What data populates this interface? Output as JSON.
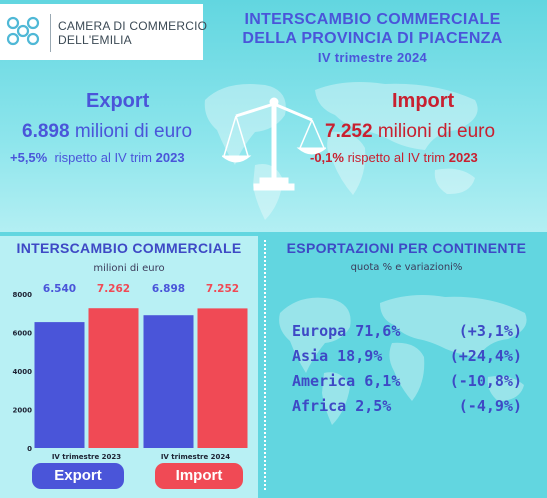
{
  "header": {
    "org_line1": "CAMERA DI COMMERCIO",
    "org_line2": "DELL'EMILIA",
    "title_line1": "INTERSCAMBIO COMMERCIALE",
    "title_line2": "DELLA PROVINCIA DI PIACENZA",
    "period": "IV trimestre 2024"
  },
  "export": {
    "label": "Export",
    "value": "6.898",
    "unit": "milioni di euro",
    "variation": "+5,5%",
    "variation_text": "rispetto al IV trim",
    "variation_year": "2023",
    "color": "#4a55d9"
  },
  "import": {
    "label": "Import",
    "value": "7.252",
    "unit": "milioni di euro",
    "variation": "-0,1%",
    "variation_text": "rispetto al IV trim",
    "variation_year": "2023",
    "color": "#c82030"
  },
  "icons": {
    "logo": "chamber-logo-icon",
    "balance": "balance-scale-icon",
    "map": "world-map-icon"
  },
  "chart_data": {
    "type": "bar",
    "title": "INTERSCAMBIO COMMERCIALE",
    "subtitle": "milioni di euro",
    "categories": [
      "IV trimestre 2023",
      "IV trimestre 2024"
    ],
    "series": [
      {
        "name": "Export",
        "values": [
          6540,
          6898
        ],
        "labels": [
          "6.540",
          "6.898"
        ],
        "color": "#4a55d9",
        "label_color": "#4a55d9"
      },
      {
        "name": "Import",
        "values": [
          7262,
          7252
        ],
        "labels": [
          "7.262",
          "7.252"
        ],
        "color": "#f04a55",
        "label_color": "#f04a55"
      }
    ],
    "ylim": [
      0,
      8000
    ],
    "yticks": [
      0,
      2000,
      4000,
      6000,
      8000
    ],
    "ytick_labels": [
      "0",
      "2000",
      "4000",
      "6000",
      "8000"
    ],
    "grid": false,
    "legend": "bottom"
  },
  "continents": {
    "title": "ESPORTAZIONI PER CONTINENTE",
    "subtitle": "quota % e variazioni%",
    "rows": [
      {
        "name": "Europa 71,6%",
        "variation": "(+3,1%)"
      },
      {
        "name": "Asia 18,9%",
        "variation": "(+24,4%)"
      },
      {
        "name": "America 6,1%",
        "variation": "(-10,8%)"
      },
      {
        "name": "Africa 2,5%",
        "variation": "(-4,9%)"
      }
    ]
  }
}
